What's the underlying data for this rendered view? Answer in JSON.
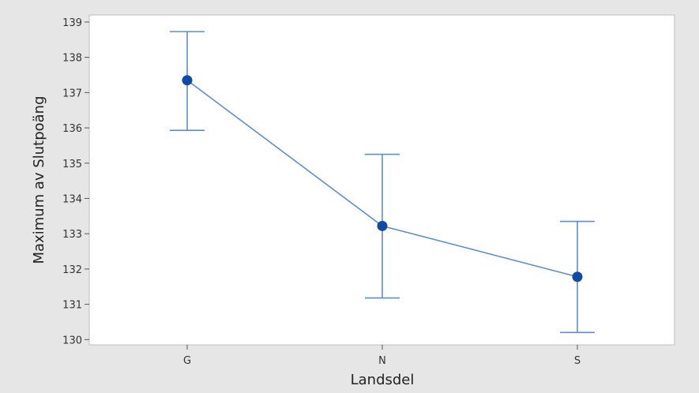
{
  "chart_data": {
    "type": "line",
    "title": "",
    "xlabel": "Landsdel",
    "ylabel": "Maximum av Slutpoäng",
    "categories": [
      "G",
      "N",
      "S"
    ],
    "series": [
      {
        "values": [
          137.35,
          133.22,
          131.78
        ],
        "error_low": [
          135.93,
          131.18,
          130.2
        ],
        "error_high": [
          138.73,
          135.25,
          133.35
        ]
      }
    ],
    "yticks": [
      "130",
      "131",
      "132",
      "133",
      "134",
      "135",
      "136",
      "137",
      "138",
      "139"
    ],
    "ylim": [
      129.85,
      139.2
    ],
    "grid": false,
    "line_color": "#5b8fd0",
    "marker_color": "#0f4aa6",
    "plot_background": "#ffffff",
    "chart_background": "#e6e6e6"
  }
}
